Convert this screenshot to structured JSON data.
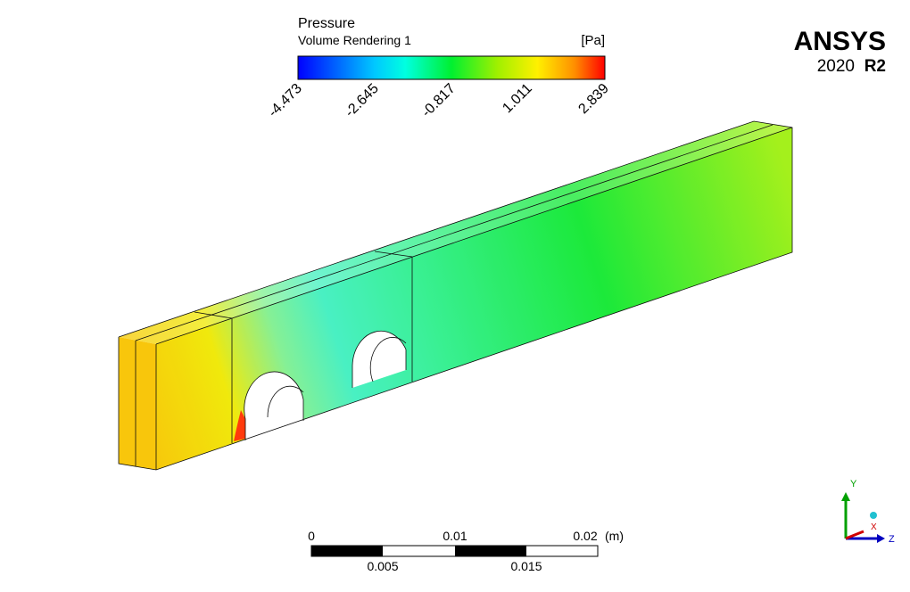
{
  "legend": {
    "title": "Pressure",
    "subtitle": "Volume Rendering 1",
    "unit": "[Pa]",
    "ticks": [
      "-4.473",
      "-2.645",
      "-0.817",
      "1.011",
      "2.839"
    ]
  },
  "logo": {
    "brand": "ANSYS",
    "year": "2020",
    "release": "R2"
  },
  "scale_bar": {
    "top_labels": [
      "0",
      "0.01",
      "0.02"
    ],
    "unit": "(m)",
    "bottom_labels": [
      "0.005",
      "0.015"
    ]
  },
  "axes_triad": {
    "y": "Y",
    "x": "X",
    "z": "Z"
  }
}
